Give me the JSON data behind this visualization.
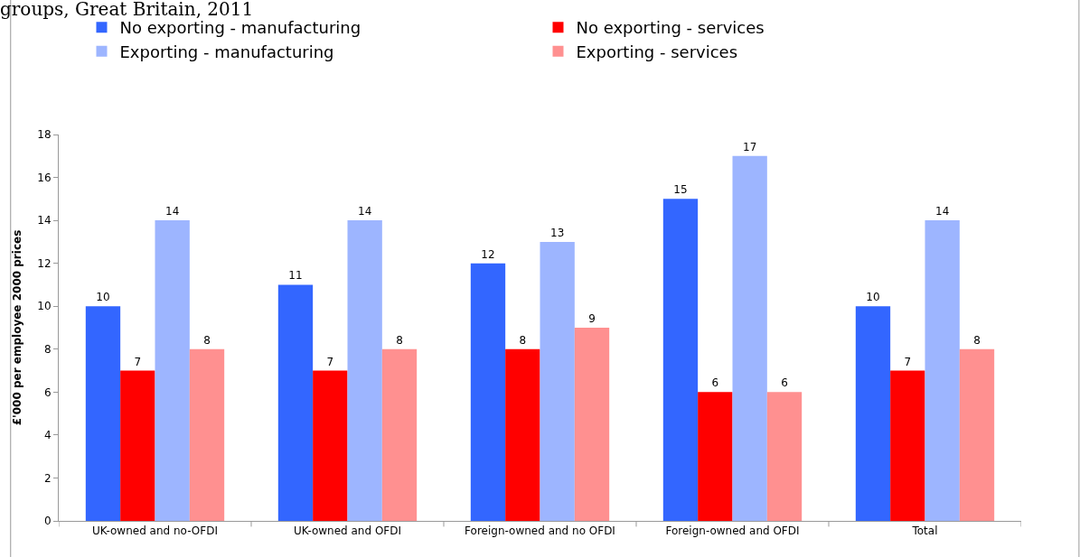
{
  "chart_data": {
    "type": "bar",
    "title": "groups, Great Britain, 2011",
    "ylabel": "£'000 per employee 2000 prices",
    "categories": [
      "UK-owned and no-OFDI",
      "UK-owned and OFDI",
      "Foreign-owned and no OFDI",
      "Foreign-owned and OFDI",
      "Total"
    ],
    "series": [
      {
        "name": "No exporting - manufacturing",
        "color": "#3366ff",
        "values": [
          10,
          11,
          12,
          15,
          10
        ]
      },
      {
        "name": "No exporting - services",
        "color": "#ff0000",
        "values": [
          7,
          7,
          8,
          6,
          7
        ]
      },
      {
        "name": "Exporting - manufacturing",
        "color": "#9db5ff",
        "values": [
          14,
          14,
          13,
          17,
          14
        ]
      },
      {
        "name": "Exporting - services",
        "color": "#ff9090",
        "values": [
          8,
          8,
          9,
          6,
          8
        ]
      }
    ],
    "ylim": [
      0,
      18
    ],
    "yticks": [
      0,
      2,
      4,
      6,
      8,
      10,
      12,
      14,
      16,
      18
    ],
    "grid": false,
    "legend": "top",
    "data_labels": true
  }
}
